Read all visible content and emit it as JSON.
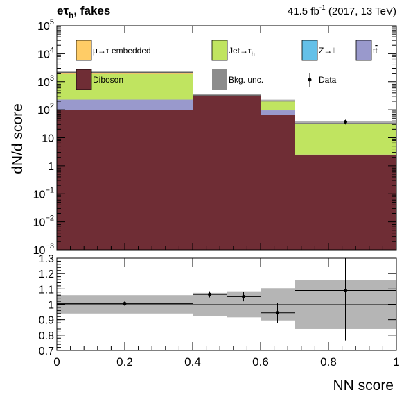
{
  "header": {
    "channel": "eτ",
    "channel_sub": "h",
    "channel_suffix": ", fakes",
    "lumi_value": "41.5 fb",
    "lumi_exp": "-1",
    "lumi_suffix": " (2017, 13 TeV)"
  },
  "colors": {
    "embedded": "#ffcc66",
    "jetfakes": "#c0e460",
    "zll": "#64c0e8",
    "ttbar": "#9999cc",
    "diboson": "#6f2d35",
    "unc": "#8c8c8c",
    "ratio_band": "#b5b5b5"
  },
  "legend": {
    "embedded": {
      "pre": "μ→τ embedded",
      "sub": ""
    },
    "jetfakes": {
      "pre": "Jet→τ",
      "sub": "h"
    },
    "zll": {
      "pre": "Z→ll",
      "sub": ""
    },
    "ttbar": {
      "pre": "t",
      "sub": ""
    },
    "diboson": {
      "pre": "Diboson",
      "sub": ""
    },
    "unc": {
      "pre": "Bkg. unc.",
      "sub": ""
    },
    "data": {
      "pre": "Data",
      "sub": ""
    }
  },
  "chart_data": [
    {
      "type": "bar",
      "stacked": true,
      "log_y": true,
      "ylabel": "dN/d score",
      "ylim": [
        0.001,
        100000
      ],
      "y_ticks": [
        {
          "base": "10",
          "exp": "5",
          "value": 100000
        },
        {
          "base": "10",
          "exp": "4",
          "value": 10000
        },
        {
          "base": "10",
          "exp": "3",
          "value": 1000
        },
        {
          "base": "10",
          "exp": "2",
          "value": 100
        },
        {
          "base": "10",
          "exp": "",
          "value": 10
        },
        {
          "base": "1",
          "exp": "",
          "value": 1
        },
        {
          "base": "10",
          "exp": "−1",
          "value": 0.1
        },
        {
          "base": "10",
          "exp": "−2",
          "value": 0.01
        },
        {
          "base": "10",
          "exp": "−3",
          "value": 0.001
        }
      ],
      "bin_edges": [
        0,
        0.4,
        0.6,
        0.7,
        1.0
      ],
      "series": [
        {
          "key": "diboson",
          "values": [
            100,
            330,
            65,
            2.5
          ]
        },
        {
          "key": "ttbar",
          "values": [
            130,
            0,
            30,
            0
          ]
        },
        {
          "key": "zll",
          "values": [
            0,
            0,
            0,
            0
          ]
        },
        {
          "key": "jetfakes",
          "values": [
            1700,
            0,
            110,
            30
          ]
        },
        {
          "key": "embedded",
          "values": [
            200,
            0,
            0,
            0
          ]
        }
      ],
      "totals": [
        2130,
        330,
        205,
        32.5
      ],
      "unc_band": [
        [
          2030,
          2230
        ],
        [
          330,
          330
        ],
        [
          200,
          210
        ],
        [
          30,
          35
        ]
      ],
      "data_points": [
        {
          "x": 0.85,
          "y": 37,
          "ylo": 30,
          "yhi": 44
        }
      ]
    },
    {
      "type": "scatter",
      "xlabel": "NN score",
      "xlim": [
        0,
        1
      ],
      "ylim": [
        0.7,
        1.3
      ],
      "x_ticks": [
        "0",
        "0.2",
        "0.4",
        "0.6",
        "0.8",
        "1"
      ],
      "y_ticks": [
        "0.7",
        "0.8",
        "0.9",
        "1",
        "1.1",
        "1.2",
        "1.3"
      ],
      "band": [
        {
          "x0": 0.0,
          "x1": 0.4,
          "lo": 0.94,
          "hi": 1.06
        },
        {
          "x0": 0.4,
          "x1": 0.5,
          "lo": 0.925,
          "hi": 1.075
        },
        {
          "x0": 0.5,
          "x1": 0.6,
          "lo": 0.915,
          "hi": 1.085
        },
        {
          "x0": 0.6,
          "x1": 0.7,
          "lo": 0.895,
          "hi": 1.105
        },
        {
          "x0": 0.7,
          "x1": 1.0,
          "lo": 0.84,
          "hi": 1.16
        }
      ],
      "points": [
        {
          "x": 0.2,
          "xlo": 0.0,
          "xhi": 0.4,
          "y": 1.005,
          "ylo": 0.99,
          "yhi": 1.02
        },
        {
          "x": 0.45,
          "xlo": 0.4,
          "xhi": 0.5,
          "y": 1.065,
          "ylo": 1.045,
          "yhi": 1.085
        },
        {
          "x": 0.55,
          "xlo": 0.5,
          "xhi": 0.6,
          "y": 1.05,
          "ylo": 1.02,
          "yhi": 1.08
        },
        {
          "x": 0.65,
          "xlo": 0.6,
          "xhi": 0.7,
          "y": 0.945,
          "ylo": 0.88,
          "yhi": 1.01
        },
        {
          "x": 0.85,
          "xlo": 0.7,
          "xhi": 1.0,
          "y": 1.09,
          "ylo": 0.765,
          "yhi": 1.3
        }
      ]
    }
  ]
}
